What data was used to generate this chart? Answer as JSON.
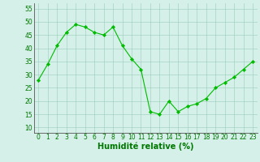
{
  "x": [
    0,
    1,
    2,
    3,
    4,
    5,
    6,
    7,
    8,
    9,
    10,
    11,
    12,
    13,
    14,
    15,
    16,
    17,
    18,
    19,
    20,
    21,
    22,
    23
  ],
  "y": [
    28,
    34,
    41,
    46,
    49,
    48,
    46,
    45,
    48,
    41,
    36,
    32,
    16,
    15,
    20,
    16,
    18,
    19,
    21,
    25,
    27,
    29,
    32,
    35
  ],
  "line_color": "#00bb00",
  "marker": "D",
  "marker_size": 2.2,
  "bg_color": "#d4f0e8",
  "grid_color": "#99ccbb",
  "xlabel": "Humidité relative (%)",
  "xlabel_color": "#007700",
  "xlabel_fontsize": 7,
  "tick_color": "#007700",
  "tick_fontsize": 5.5,
  "ylim": [
    8,
    57
  ],
  "yticks": [
    10,
    15,
    20,
    25,
    30,
    35,
    40,
    45,
    50,
    55
  ],
  "xlim": [
    -0.5,
    23.5
  ],
  "xticks": [
    0,
    1,
    2,
    3,
    4,
    5,
    6,
    7,
    8,
    9,
    10,
    11,
    12,
    13,
    14,
    15,
    16,
    17,
    18,
    19,
    20,
    21,
    22,
    23
  ]
}
